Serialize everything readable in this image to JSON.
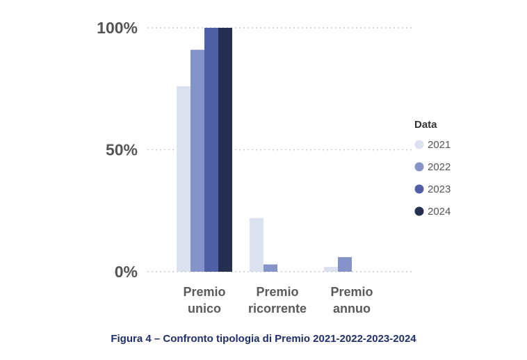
{
  "chart_data": {
    "type": "bar",
    "categories": [
      [
        "Premio",
        "unico"
      ],
      [
        "Premio",
        "ricorrente"
      ],
      [
        "Premio",
        "annuo"
      ]
    ],
    "series": [
      {
        "name": "2021",
        "color": "#dbe1ee",
        "values": [
          76,
          22,
          2
        ]
      },
      {
        "name": "2022",
        "color": "#8494c8",
        "values": [
          91,
          3,
          6
        ]
      },
      {
        "name": "2023",
        "color": "#4f5fa6",
        "values": [
          100,
          0,
          0
        ]
      },
      {
        "name": "2024",
        "color": "#242f52",
        "values": [
          100,
          0,
          0
        ]
      }
    ],
    "yticks": [
      {
        "value": 0,
        "label": "0%"
      },
      {
        "value": 50,
        "label": "50%"
      },
      {
        "value": 100,
        "label": "100%"
      }
    ],
    "ylim": [
      0,
      100
    ],
    "grid": true,
    "legend_title": "Data",
    "legend_position": "right"
  },
  "caption": "Figura 4 – Confronto tipologia di Premio 2021-2022-2023-2024"
}
